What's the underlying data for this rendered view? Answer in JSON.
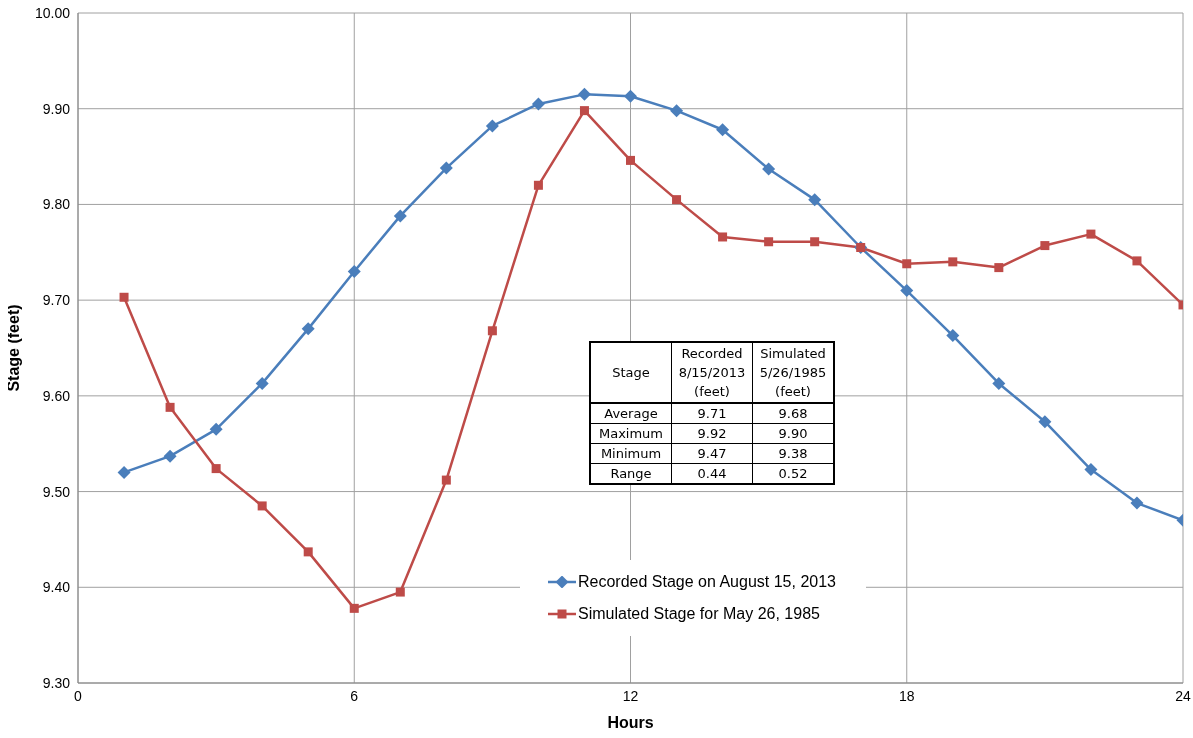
{
  "chart_data": {
    "type": "line",
    "xlabel": "Hours",
    "ylabel": "Stage (feet)",
    "x": [
      1,
      2,
      3,
      4,
      5,
      6,
      7,
      8,
      9,
      10,
      11,
      12,
      13,
      14,
      15,
      16,
      17,
      18,
      19,
      20,
      21,
      22,
      23,
      24
    ],
    "series": [
      {
        "name": "Recorded Stage on August 15, 2013",
        "color": "#4a7ebb",
        "marker": "diamond",
        "values": [
          9.52,
          9.537,
          9.565,
          9.613,
          9.67,
          9.73,
          9.788,
          9.838,
          9.882,
          9.905,
          9.915,
          9.913,
          9.898,
          9.878,
          9.837,
          9.805,
          9.755,
          9.71,
          9.663,
          9.613,
          9.573,
          9.523,
          9.488,
          9.47
        ]
      },
      {
        "name": "Simulated Stage for May 26, 1985",
        "color": "#be4b48",
        "marker": "square",
        "values": [
          9.703,
          9.588,
          9.524,
          9.485,
          9.437,
          9.378,
          9.395,
          9.512,
          9.668,
          9.82,
          9.898,
          9.846,
          9.805,
          9.766,
          9.761,
          9.761,
          9.755,
          9.738,
          9.74,
          9.734,
          9.757,
          9.769,
          9.741,
          9.695
        ]
      }
    ],
    "xlim": [
      0,
      24
    ],
    "xticks": [
      0,
      6,
      12,
      18,
      24
    ],
    "ylim": [
      9.3,
      10
    ],
    "yticks": [
      {
        "value": 9.3,
        "label": "9.30"
      },
      {
        "value": 9.4,
        "label": "9.40"
      },
      {
        "value": 9.5,
        "label": "9.50"
      },
      {
        "value": 9.6,
        "label": "9.60"
      },
      {
        "value": 9.7,
        "label": "9.70"
      },
      {
        "value": 9.8,
        "label": "9.80"
      },
      {
        "value": 9.9,
        "label": "9.90"
      },
      {
        "value": 10,
        "label": "10.00"
      }
    ],
    "grid": true,
    "legend": "bottom",
    "line_style": "solid",
    "annotations": [
      "Stage",
      "Recorded 8/15/2013 (feet)",
      "Simulated 5/26/1985 (feet)",
      "Average",
      "9.71",
      "9.68",
      "Maximum",
      "9.92",
      "9.90",
      "Minimum",
      "9.47",
      "9.38",
      "Range",
      "0.44",
      "0.52"
    ]
  }
}
